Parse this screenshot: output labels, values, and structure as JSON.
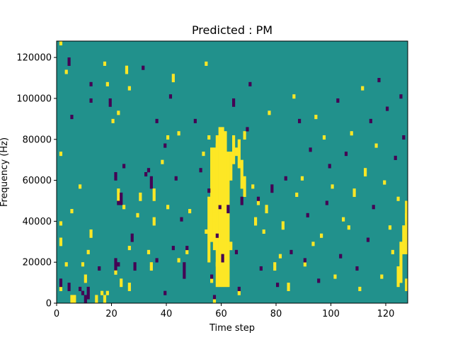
{
  "chart_data": {
    "type": "heatmap",
    "title": "Predicted : PM",
    "xlabel": "Time step",
    "ylabel": "Frequency (Hz)",
    "xlim": [
      0,
      128
    ],
    "ylim": [
      0,
      128000
    ],
    "xticks": [
      0,
      20,
      40,
      60,
      80,
      100,
      120
    ],
    "yticks": [
      0,
      20000,
      40000,
      60000,
      80000,
      100000,
      120000
    ],
    "n_time_steps": 128,
    "n_freq_bins": 64,
    "freq_bin_hz": 2000,
    "grid": false,
    "legend": "none",
    "colors": {
      "background": "#21918c",
      "high": "#fde725",
      "low": "#440154"
    },
    "background_value": 0,
    "value_legend": {
      "1": "high",
      "-1": "low"
    },
    "cells": [
      [
        1,
        3,
        1
      ],
      [
        1,
        4,
        -1
      ],
      [
        1,
        5,
        -1
      ],
      [
        1,
        14,
        1
      ],
      [
        1,
        15,
        1
      ],
      [
        1,
        19,
        1
      ],
      [
        1,
        63,
        1
      ],
      [
        1,
        36,
        1
      ],
      [
        4,
        58,
        -1
      ],
      [
        4,
        59,
        -1
      ],
      [
        3,
        56,
        1
      ],
      [
        5,
        22,
        1
      ],
      [
        5,
        45,
        -1
      ],
      [
        4,
        3,
        -1
      ],
      [
        4,
        4,
        -1
      ],
      [
        3,
        9,
        1
      ],
      [
        5,
        0,
        1
      ],
      [
        5,
        1,
        1
      ],
      [
        6,
        0,
        1
      ],
      [
        6,
        1,
        1
      ],
      [
        8,
        3,
        -1
      ],
      [
        9,
        9,
        1
      ],
      [
        9,
        2,
        -1
      ],
      [
        8,
        28,
        1
      ],
      [
        10,
        5,
        1
      ],
      [
        10,
        6,
        1
      ],
      [
        10,
        0,
        -1
      ],
      [
        10,
        1,
        -1
      ],
      [
        11,
        1,
        -1
      ],
      [
        11,
        2,
        -1
      ],
      [
        11,
        3,
        -1
      ],
      [
        11,
        12,
        1
      ],
      [
        12,
        16,
        1
      ],
      [
        12,
        17,
        1
      ],
      [
        12,
        53,
        -1
      ],
      [
        12,
        49,
        -1
      ],
      [
        14,
        0,
        1
      ],
      [
        14,
        1,
        1
      ],
      [
        15,
        8,
        -1
      ],
      [
        16,
        2,
        1
      ],
      [
        17,
        0,
        1
      ],
      [
        17,
        1,
        1
      ],
      [
        17,
        58,
        1
      ],
      [
        18,
        2,
        1
      ],
      [
        18,
        53,
        1
      ],
      [
        19,
        48,
        -1
      ],
      [
        19,
        49,
        -1
      ],
      [
        20,
        44,
        1
      ],
      [
        21,
        7,
        1
      ],
      [
        21,
        30,
        -1
      ],
      [
        21,
        31,
        -1
      ],
      [
        22,
        9,
        -1
      ],
      [
        22,
        24,
        -1
      ],
      [
        22,
        46,
        1
      ],
      [
        23,
        4,
        1
      ],
      [
        23,
        5,
        1
      ],
      [
        24,
        23,
        1
      ],
      [
        24,
        33,
        -1
      ],
      [
        25,
        56,
        1
      ],
      [
        25,
        57,
        1
      ],
      [
        26,
        3,
        1
      ],
      [
        26,
        4,
        1
      ],
      [
        26,
        13,
        1
      ],
      [
        26,
        52,
        1
      ],
      [
        27,
        15,
        -1
      ],
      [
        27,
        16,
        -1
      ],
      [
        28,
        8,
        -1
      ],
      [
        28,
        9,
        -1
      ],
      [
        29,
        21,
        1
      ],
      [
        30,
        25,
        1
      ],
      [
        30,
        26,
        1
      ],
      [
        31,
        57,
        -1
      ],
      [
        32,
        31,
        -1
      ],
      [
        33,
        32,
        -1
      ],
      [
        33,
        12,
        1
      ],
      [
        34,
        8,
        1
      ],
      [
        34,
        9,
        1
      ],
      [
        35,
        19,
        1
      ],
      [
        35,
        20,
        1
      ],
      [
        36,
        44,
        -1
      ],
      [
        36,
        10,
        -1
      ],
      [
        38,
        34,
        1
      ],
      [
        39,
        2,
        -1
      ],
      [
        39,
        38,
        -1
      ],
      [
        40,
        40,
        1
      ],
      [
        40,
        23,
        1
      ],
      [
        41,
        50,
        -1
      ],
      [
        42,
        54,
        1
      ],
      [
        42,
        55,
        1
      ],
      [
        42,
        13,
        -1
      ],
      [
        43,
        30,
        -1
      ],
      [
        44,
        41,
        1
      ],
      [
        44,
        10,
        1
      ],
      [
        45,
        20,
        -1
      ],
      [
        46,
        6,
        -1
      ],
      [
        46,
        7,
        -1
      ],
      [
        46,
        8,
        -1
      ],
      [
        46,
        9,
        -1
      ],
      [
        47,
        12,
        1
      ],
      [
        47,
        13,
        -1
      ],
      [
        48,
        22,
        1
      ],
      [
        50,
        44,
        -1
      ],
      [
        52,
        32,
        -1
      ],
      [
        53,
        36,
        1
      ],
      [
        54,
        58,
        1
      ],
      [
        54,
        17,
        1
      ],
      [
        55,
        27,
        -1
      ],
      [
        55,
        40,
        1
      ],
      [
        56,
        5,
        1
      ],
      [
        56,
        6,
        -1
      ],
      [
        57,
        20,
        1
      ],
      [
        57,
        21,
        1
      ],
      [
        57,
        0,
        1
      ],
      [
        57,
        1,
        -1
      ],
      [
        58,
        9,
        1
      ],
      [
        58,
        16,
        -1
      ],
      [
        58,
        37,
        1
      ],
      [
        58,
        38,
        1
      ],
      [
        59,
        23,
        -1
      ],
      [
        59,
        24,
        1
      ],
      [
        60,
        10,
        -1
      ],
      [
        60,
        11,
        -1
      ],
      [
        60,
        17,
        1
      ],
      [
        61,
        35,
        1
      ],
      [
        61,
        36,
        1
      ],
      [
        62,
        22,
        -1
      ],
      [
        62,
        23,
        -1
      ],
      [
        63,
        13,
        1
      ],
      [
        63,
        14,
        1
      ],
      [
        64,
        48,
        -1
      ],
      [
        64,
        49,
        -1
      ],
      [
        65,
        36,
        1
      ],
      [
        65,
        37,
        1
      ],
      [
        65,
        12,
        -1
      ],
      [
        66,
        2,
        1
      ],
      [
        66,
        3,
        -1
      ],
      [
        67,
        24,
        -1
      ],
      [
        67,
        25,
        -1
      ],
      [
        68,
        40,
        1
      ],
      [
        68,
        41,
        1
      ],
      [
        69,
        42,
        -1
      ],
      [
        70,
        53,
        -1
      ],
      [
        71,
        28,
        1
      ],
      [
        72,
        19,
        1
      ],
      [
        72,
        20,
        1
      ],
      [
        73,
        24,
        1
      ],
      [
        73,
        25,
        -1
      ],
      [
        74,
        8,
        -1
      ],
      [
        75,
        17,
        1
      ],
      [
        76,
        22,
        1
      ],
      [
        76,
        23,
        1
      ],
      [
        77,
        46,
        1
      ],
      [
        78,
        27,
        -1
      ],
      [
        78,
        28,
        -1
      ],
      [
        79,
        8,
        1
      ],
      [
        79,
        9,
        1
      ],
      [
        80,
        4,
        -1
      ],
      [
        81,
        11,
        1
      ],
      [
        82,
        18,
        1
      ],
      [
        82,
        19,
        1
      ],
      [
        83,
        30,
        -1
      ],
      [
        84,
        3,
        1
      ],
      [
        84,
        4,
        1
      ],
      [
        85,
        12,
        -1
      ],
      [
        86,
        50,
        1
      ],
      [
        87,
        26,
        1
      ],
      [
        88,
        44,
        -1
      ],
      [
        89,
        30,
        1
      ],
      [
        90,
        9,
        1
      ],
      [
        90,
        10,
        -1
      ],
      [
        91,
        21,
        -1
      ],
      [
        92,
        37,
        -1
      ],
      [
        93,
        14,
        1
      ],
      [
        94,
        45,
        1
      ],
      [
        95,
        5,
        -1
      ],
      [
        96,
        16,
        1
      ],
      [
        97,
        40,
        1
      ],
      [
        98,
        24,
        -1
      ],
      [
        99,
        33,
        -1
      ],
      [
        100,
        28,
        1
      ],
      [
        101,
        6,
        1
      ],
      [
        102,
        49,
        -1
      ],
      [
        103,
        11,
        -1
      ],
      [
        104,
        20,
        1
      ],
      [
        105,
        36,
        -1
      ],
      [
        106,
        18,
        1
      ],
      [
        107,
        41,
        1
      ],
      [
        108,
        26,
        1
      ],
      [
        108,
        27,
        1
      ],
      [
        109,
        8,
        -1
      ],
      [
        110,
        3,
        1
      ],
      [
        111,
        52,
        1
      ],
      [
        112,
        31,
        1
      ],
      [
        112,
        32,
        1
      ],
      [
        113,
        15,
        -1
      ],
      [
        114,
        44,
        -1
      ],
      [
        115,
        23,
        -1
      ],
      [
        116,
        38,
        1
      ],
      [
        117,
        54,
        -1
      ],
      [
        118,
        6,
        1
      ],
      [
        119,
        29,
        1
      ],
      [
        120,
        47,
        -1
      ],
      [
        121,
        18,
        1
      ],
      [
        122,
        12,
        1
      ],
      [
        123,
        35,
        -1
      ],
      [
        124,
        25,
        1
      ],
      [
        125,
        50,
        -1
      ],
      [
        126,
        40,
        -1
      ],
      [
        127,
        20,
        1
      ],
      [
        127,
        21,
        1
      ]
    ],
    "runs": [
      [
        55,
        10,
        25,
        1
      ],
      [
        56,
        15,
        37,
        1
      ],
      [
        57,
        13,
        37,
        1
      ],
      [
        58,
        4,
        40,
        1
      ],
      [
        59,
        4,
        42,
        1
      ],
      [
        60,
        4,
        42,
        1
      ],
      [
        61,
        4,
        41,
        1
      ],
      [
        62,
        4,
        36,
        1
      ],
      [
        63,
        30,
        36,
        1
      ],
      [
        64,
        34,
        40,
        1
      ],
      [
        66,
        33,
        39,
        1
      ],
      [
        67,
        28,
        34,
        1
      ],
      [
        68,
        26,
        30,
        1
      ],
      [
        22,
        25,
        27,
        1
      ],
      [
        23,
        24,
        26,
        -1
      ],
      [
        21,
        8,
        10,
        -1
      ],
      [
        34,
        28,
        30,
        -1
      ],
      [
        35,
        25,
        27,
        1
      ],
      [
        126,
        12,
        18,
        1
      ],
      [
        125,
        5,
        14,
        1
      ],
      [
        124,
        4,
        8,
        1
      ],
      [
        127,
        3,
        5,
        1
      ],
      [
        127,
        12,
        24,
        1
      ]
    ]
  }
}
